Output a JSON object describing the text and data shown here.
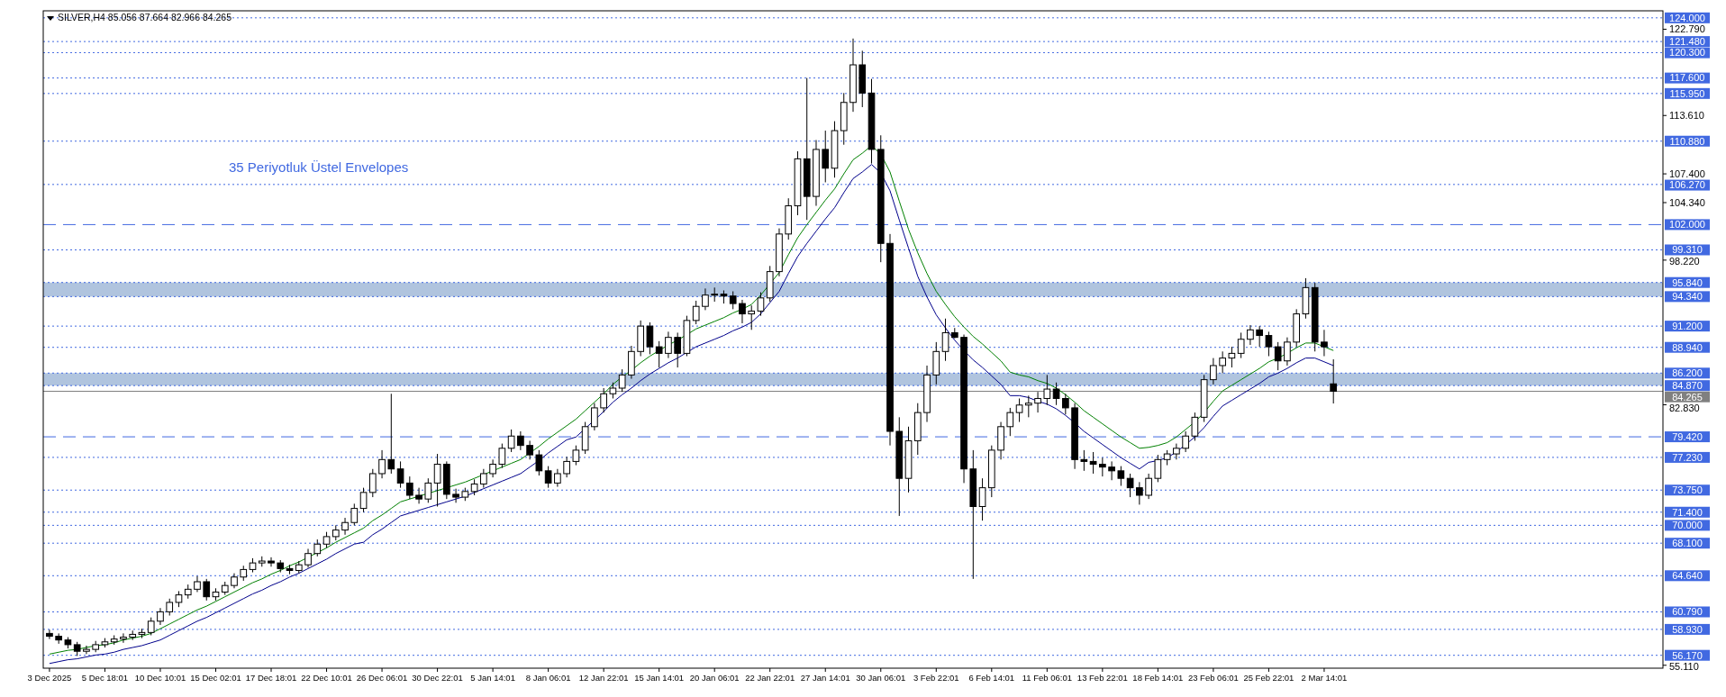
{
  "chart_data": {
    "type": "candlestick",
    "title": "SILVER,H4 85.056 87.664 82.966 84.265",
    "annotations": [
      "35 Periyotluk Üstel Envelopes"
    ],
    "categories": [
      "3 Dec 2025",
      null,
      null,
      null,
      null,
      null,
      "5 Dec 18:01",
      null,
      null,
      null,
      null,
      null,
      "10 Dec 10:01",
      null,
      null,
      null,
      null,
      null,
      "15 Dec 02:01",
      null,
      null,
      null,
      null,
      null,
      "17 Dec 18:01",
      null,
      null,
      null,
      null,
      null,
      "22 Dec 10:01",
      null,
      null,
      null,
      null,
      null,
      "26 Dec 06:01",
      null,
      null,
      null,
      null,
      null,
      "30 Dec 22:01",
      null,
      null,
      null,
      null,
      null,
      "5 Jan 14:01",
      null,
      null,
      null,
      null,
      null,
      "8 Jan 06:01",
      null,
      null,
      null,
      null,
      null,
      "12 Jan 22:01",
      null,
      null,
      null,
      null,
      null,
      "15 Jan 14:01",
      null,
      null,
      null,
      null,
      null,
      "20 Jan 06:01",
      null,
      null,
      null,
      null,
      null,
      "22 Jan 22:01",
      null,
      null,
      null,
      null,
      null,
      "27 Jan 14:01",
      null,
      null,
      null,
      null,
      null,
      "30 Jan 06:01",
      null,
      null,
      null,
      null,
      null,
      "3 Feb 22:01",
      null,
      null,
      null,
      null,
      null,
      "6 Feb 14:01",
      null,
      null,
      null,
      null,
      null,
      "11 Feb 06:01",
      null,
      null,
      null,
      null,
      null,
      "13 Feb 22:01",
      null,
      null,
      null,
      null,
      null,
      "18 Feb 14:01",
      null,
      null,
      null,
      null,
      null,
      "23 Feb 06:01",
      null,
      null,
      null,
      null,
      null,
      "25 Feb 22:01",
      null,
      null,
      null,
      null,
      null,
      "2 Mar 14:01",
      null,
      null,
      null,
      null,
      null,
      null,
      null,
      null,
      null,
      null,
      null,
      null,
      null,
      null,
      null,
      null,
      null,
      null,
      null,
      null,
      null,
      null,
      null,
      null,
      null,
      null,
      null,
      null,
      null,
      null,
      null,
      null,
      null,
      null,
      null,
      null
    ],
    "ohlc": [
      [
        58.5,
        58.9,
        57.9,
        58.2
      ],
      [
        58.2,
        58.5,
        57.4,
        57.8
      ],
      [
        57.8,
        58.1,
        56.9,
        57.3
      ],
      [
        57.3,
        57.6,
        56.1,
        56.6
      ],
      [
        56.6,
        57.2,
        56.3,
        56.8
      ],
      [
        56.8,
        57.7,
        56.5,
        57.3
      ],
      [
        57.3,
        58.0,
        57.0,
        57.6
      ],
      [
        57.6,
        58.3,
        57.3,
        57.9
      ],
      [
        57.9,
        58.5,
        57.5,
        58.1
      ],
      [
        58.1,
        58.8,
        57.8,
        58.4
      ],
      [
        58.4,
        59.0,
        58.0,
        58.6
      ],
      [
        58.6,
        60.2,
        58.3,
        59.8
      ],
      [
        59.8,
        61.2,
        59.4,
        60.8
      ],
      [
        60.8,
        62.2,
        60.4,
        61.8
      ],
      [
        61.8,
        63.0,
        61.3,
        62.6
      ],
      [
        62.6,
        63.7,
        62.2,
        63.2
      ],
      [
        63.2,
        64.6,
        62.9,
        64.0
      ],
      [
        64.0,
        64.3,
        62.0,
        62.4
      ],
      [
        62.4,
        63.3,
        62.0,
        62.9
      ],
      [
        62.9,
        64.0,
        62.6,
        63.6
      ],
      [
        63.6,
        64.9,
        63.3,
        64.5
      ],
      [
        64.5,
        65.7,
        64.1,
        65.3
      ],
      [
        65.3,
        66.5,
        65.0,
        66.0
      ],
      [
        66.0,
        66.7,
        65.6,
        66.2
      ],
      [
        66.2,
        66.6,
        65.6,
        66.0
      ],
      [
        66.0,
        66.3,
        65.0,
        65.4
      ],
      [
        65.4,
        65.8,
        64.8,
        65.2
      ],
      [
        65.2,
        66.2,
        64.9,
        65.8
      ],
      [
        65.8,
        67.5,
        65.5,
        67.0
      ],
      [
        67.0,
        68.5,
        66.7,
        68.0
      ],
      [
        68.0,
        69.3,
        67.6,
        68.8
      ],
      [
        68.8,
        70.0,
        68.4,
        69.5
      ],
      [
        69.5,
        70.8,
        69.0,
        70.3
      ],
      [
        70.3,
        72.3,
        70.0,
        71.8
      ],
      [
        71.8,
        74.0,
        71.4,
        73.5
      ],
      [
        73.5,
        76.0,
        73.0,
        75.5
      ],
      [
        75.5,
        78.0,
        75.0,
        77.0
      ],
      [
        77.0,
        84.0,
        75.5,
        76.0
      ],
      [
        76.0,
        76.8,
        74.0,
        74.5
      ],
      [
        74.5,
        75.2,
        72.8,
        73.2
      ],
      [
        73.2,
        74.0,
        72.3,
        72.8
      ],
      [
        72.8,
        75.0,
        72.4,
        74.5
      ],
      [
        74.5,
        77.6,
        72.0,
        76.5
      ],
      [
        76.5,
        76.8,
        72.8,
        73.3
      ],
      [
        73.3,
        73.9,
        72.4,
        73.0
      ],
      [
        73.0,
        74.0,
        72.6,
        73.6
      ],
      [
        73.6,
        74.9,
        73.2,
        74.4
      ],
      [
        74.4,
        76.0,
        74.0,
        75.5
      ],
      [
        75.5,
        77.0,
        75.1,
        76.5
      ],
      [
        76.5,
        78.7,
        76.1,
        78.2
      ],
      [
        78.2,
        80.2,
        77.8,
        79.5
      ],
      [
        79.5,
        80.0,
        78.0,
        78.5
      ],
      [
        78.5,
        79.0,
        77.0,
        77.5
      ],
      [
        77.5,
        78.0,
        75.3,
        75.8
      ],
      [
        75.8,
        76.3,
        74.0,
        74.5
      ],
      [
        74.5,
        76.0,
        74.1,
        75.5
      ],
      [
        75.5,
        77.3,
        75.1,
        76.8
      ],
      [
        76.8,
        78.5,
        76.4,
        78.0
      ],
      [
        78.0,
        81.0,
        77.6,
        80.5
      ],
      [
        80.5,
        83.0,
        80.1,
        82.5
      ],
      [
        82.5,
        84.6,
        82.0,
        84.0
      ],
      [
        84.0,
        85.2,
        83.5,
        84.6
      ],
      [
        84.6,
        86.6,
        84.2,
        86.0
      ],
      [
        86.0,
        89.1,
        85.6,
        88.5
      ],
      [
        88.5,
        91.8,
        88.0,
        91.2
      ],
      [
        91.2,
        91.6,
        88.2,
        89.0
      ],
      [
        89.0,
        89.6,
        86.8,
        88.3
      ],
      [
        88.3,
        90.6,
        87.8,
        90.0
      ],
      [
        90.0,
        90.5,
        86.8,
        88.3
      ],
      [
        88.3,
        92.3,
        88.0,
        91.8
      ],
      [
        91.8,
        93.9,
        91.4,
        93.3
      ],
      [
        93.3,
        95.2,
        92.9,
        94.5
      ],
      [
        94.5,
        95.3,
        93.8,
        94.6
      ],
      [
        94.6,
        95.0,
        93.6,
        94.4
      ],
      [
        94.4,
        94.9,
        93.0,
        93.6
      ],
      [
        93.6,
        94.0,
        91.5,
        92.5
      ],
      [
        92.5,
        93.4,
        90.8,
        92.8
      ],
      [
        92.8,
        94.8,
        92.3,
        94.2
      ],
      [
        94.2,
        97.6,
        93.8,
        97.0
      ],
      [
        97.0,
        101.6,
        96.5,
        101.0
      ],
      [
        101.0,
        104.8,
        100.4,
        104.0
      ],
      [
        104.0,
        109.8,
        103.0,
        109.0
      ],
      [
        109.0,
        117.6,
        102.5,
        105.0
      ],
      [
        105.0,
        111.0,
        104.0,
        110.0
      ],
      [
        110.0,
        112.0,
        106.5,
        108.0
      ],
      [
        108.0,
        113.0,
        107.0,
        112.0
      ],
      [
        112.0,
        116.0,
        110.5,
        115.0
      ],
      [
        115.0,
        121.8,
        114.0,
        119.0
      ],
      [
        119.0,
        120.5,
        114.5,
        116.0
      ],
      [
        116.0,
        117.5,
        108.5,
        110.0
      ],
      [
        110.0,
        111.5,
        98.0,
        100.0
      ],
      [
        100.0,
        101.0,
        78.5,
        80.0
      ],
      [
        80.0,
        81.5,
        71.0,
        75.0
      ],
      [
        75.0,
        80.5,
        73.5,
        79.0
      ],
      [
        79.0,
        83.0,
        77.5,
        82.0
      ],
      [
        82.0,
        87.0,
        81.0,
        86.0
      ],
      [
        86.0,
        89.5,
        85.0,
        88.5
      ],
      [
        88.5,
        92.0,
        87.5,
        90.5
      ],
      [
        90.5,
        91.0,
        89.9,
        90.0
      ],
      [
        90.0,
        90.3,
        74.5,
        76.0
      ],
      [
        76.0,
        78.0,
        64.3,
        72.0
      ],
      [
        72.0,
        75.0,
        70.5,
        74.0
      ],
      [
        74.0,
        78.5,
        73.0,
        78.0
      ],
      [
        78.0,
        81.0,
        77.0,
        80.5
      ],
      [
        80.5,
        82.5,
        79.5,
        82.0
      ],
      [
        82.0,
        83.5,
        81.0,
        82.8
      ],
      [
        82.8,
        83.8,
        81.5,
        83.0
      ],
      [
        83.0,
        84.2,
        82.0,
        83.5
      ],
      [
        83.5,
        86.0,
        82.8,
        84.5
      ],
      [
        84.5,
        85.2,
        82.8,
        83.5
      ],
      [
        83.5,
        84.0,
        81.8,
        82.5
      ],
      [
        82.5,
        83.0,
        76.0,
        77.0
      ],
      [
        77.0,
        78.0,
        75.8,
        76.8
      ],
      [
        76.8,
        77.8,
        75.5,
        76.5
      ],
      [
        76.5,
        77.2,
        75.2,
        76.2
      ],
      [
        76.2,
        76.8,
        74.8,
        75.8
      ],
      [
        75.8,
        76.3,
        74.2,
        75.0
      ],
      [
        75.0,
        75.5,
        73.0,
        74.0
      ],
      [
        74.0,
        74.6,
        72.2,
        73.2
      ],
      [
        73.2,
        75.5,
        72.8,
        75.0
      ],
      [
        75.0,
        77.5,
        74.6,
        77.0
      ],
      [
        77.0,
        78.0,
        76.4,
        77.6
      ],
      [
        77.6,
        78.7,
        77.0,
        78.2
      ],
      [
        78.2,
        80.0,
        77.8,
        79.5
      ],
      [
        79.5,
        82.0,
        79.0,
        81.5
      ],
      [
        81.5,
        86.0,
        81.0,
        85.5
      ],
      [
        85.5,
        87.8,
        85.0,
        87.0
      ],
      [
        87.0,
        88.5,
        86.2,
        87.8
      ],
      [
        87.8,
        89.0,
        86.8,
        88.3
      ],
      [
        88.3,
        90.5,
        87.8,
        89.8
      ],
      [
        89.8,
        91.3,
        89.2,
        90.8
      ],
      [
        90.8,
        91.2,
        89.0,
        90.2
      ],
      [
        90.2,
        90.6,
        88.0,
        89.0
      ],
      [
        89.0,
        89.5,
        86.5,
        87.5
      ],
      [
        87.5,
        90.0,
        87.0,
        89.5
      ],
      [
        89.5,
        93.0,
        89.0,
        92.5
      ],
      [
        92.5,
        96.3,
        92.0,
        95.3
      ],
      [
        95.3,
        95.8,
        88.5,
        89.5
      ],
      [
        89.5,
        90.8,
        88.0,
        89.0
      ],
      [
        85.056,
        87.664,
        82.966,
        84.265
      ],
      null,
      null,
      null,
      null,
      null,
      null,
      null,
      null,
      null,
      null,
      null,
      null,
      null,
      null,
      null,
      null,
      null,
      null,
      null,
      null,
      null,
      null,
      null,
      null,
      null,
      null,
      null,
      null,
      null,
      null,
      null,
      null,
      null,
      null,
      null
    ],
    "series": [
      {
        "type": "line",
        "color": "#008000",
        "values": [
          56.3,
          56.5,
          56.7,
          56.8,
          57.0,
          57.2,
          57.3,
          57.5,
          57.8,
          58.0,
          58.2,
          58.5,
          59.0,
          59.5,
          60.0,
          60.5,
          61.0,
          61.4,
          61.9,
          62.4,
          62.9,
          63.4,
          63.9,
          64.3,
          64.8,
          65.2,
          65.7,
          66.1,
          66.6,
          67.1,
          67.6,
          68.2,
          68.7,
          69.2,
          69.7,
          70.5,
          71.1,
          71.8,
          72.5,
          72.8,
          73.1,
          73.4,
          73.7,
          74.0,
          74.3,
          74.6,
          75.0,
          75.4,
          75.8,
          76.2,
          76.6,
          77.0,
          77.7,
          78.4,
          79.2,
          79.9,
          80.6,
          81.3,
          82.2,
          83.1,
          84.0,
          85.0,
          85.8,
          86.5,
          87.3,
          88.0,
          88.6,
          89.2,
          89.7,
          90.3,
          90.9,
          91.3,
          91.7,
          92.1,
          92.6,
          93.0,
          93.5,
          94.5,
          95.7,
          96.9,
          98.8,
          100.6,
          102.0,
          103.3,
          104.6,
          105.8,
          107.4,
          108.9,
          109.6,
          110.4,
          109.5,
          107.6,
          104.5,
          101.5,
          99.0,
          96.8,
          94.9,
          93.5,
          92.2,
          91.1,
          90.1,
          89.3,
          88.4,
          87.5,
          86.3,
          86.0,
          85.8,
          85.4,
          85.1,
          84.6,
          83.9,
          83.1,
          82.2,
          81.5,
          80.8,
          80.1,
          79.4,
          78.8,
          78.2,
          78.3,
          78.5,
          78.8,
          79.4,
          80.2,
          81.0,
          82.0,
          83.2,
          84.3,
          84.9,
          85.5,
          86.1,
          86.7,
          87.4,
          87.8,
          88.3,
          88.9,
          89.4,
          89.4,
          89.0,
          88.6,
          null,
          null,
          null,
          null,
          null,
          null,
          null,
          null,
          null,
          null,
          null,
          null,
          null,
          null,
          null,
          null,
          null,
          null,
          null,
          null,
          null,
          null,
          null,
          null,
          null,
          null,
          null,
          null,
          null,
          null,
          null,
          null,
          null,
          null,
          null
        ]
      },
      {
        "type": "line",
        "color": "#00008b",
        "values": [
          55.3,
          55.5,
          55.7,
          55.8,
          56.0,
          56.2,
          56.3,
          56.5,
          56.8,
          57.0,
          57.2,
          57.5,
          57.8,
          58.3,
          58.8,
          59.3,
          59.8,
          60.2,
          60.7,
          61.2,
          61.7,
          62.2,
          62.7,
          63.1,
          63.6,
          64.0,
          64.5,
          64.9,
          65.4,
          65.9,
          66.4,
          67.0,
          67.5,
          68.0,
          68.2,
          69.0,
          69.6,
          70.3,
          71.0,
          71.3,
          71.6,
          71.9,
          72.2,
          72.5,
          72.8,
          73.1,
          73.5,
          73.9,
          74.3,
          74.7,
          75.1,
          75.5,
          76.2,
          76.9,
          77.7,
          78.4,
          79.1,
          79.4,
          80.3,
          81.2,
          82.1,
          83.1,
          83.9,
          84.6,
          85.4,
          86.1,
          86.7,
          87.3,
          87.8,
          88.4,
          89.0,
          89.4,
          89.8,
          90.2,
          90.7,
          91.1,
          91.6,
          92.5,
          93.7,
          94.9,
          96.8,
          98.6,
          100.0,
          101.3,
          102.6,
          103.8,
          105.4,
          106.9,
          107.6,
          108.4,
          107.5,
          105.6,
          102.5,
          99.5,
          96.5,
          94.3,
          92.4,
          91.0,
          89.7,
          88.6,
          87.6,
          86.8,
          85.9,
          85.0,
          83.8,
          83.8,
          83.6,
          83.2,
          82.9,
          82.4,
          81.7,
          80.9,
          80.0,
          79.3,
          78.6,
          77.9,
          77.2,
          76.6,
          76.0,
          76.7,
          76.9,
          77.2,
          77.8,
          78.6,
          79.4,
          80.4,
          81.6,
          82.7,
          83.3,
          83.9,
          84.5,
          85.1,
          85.8,
          86.2,
          86.7,
          87.3,
          87.8,
          87.8,
          87.4,
          87.0,
          null,
          null,
          null,
          null,
          null,
          null,
          null,
          null,
          null,
          null,
          null,
          null,
          null,
          null,
          null,
          null,
          null,
          null,
          null,
          null,
          null,
          null,
          null,
          null,
          null,
          null,
          null,
          null,
          null,
          null,
          null,
          null,
          null,
          null,
          null
        ]
      }
    ],
    "ylim": [
      54.8,
      124.75
    ],
    "yticks": [
      {
        "value": 122.79,
        "label": "122.790"
      },
      {
        "value": 113.61,
        "label": "113.610"
      },
      {
        "value": 107.4,
        "label": "107.400"
      },
      {
        "value": 104.34,
        "label": "104.340"
      },
      {
        "value": 98.22,
        "label": "98.220"
      },
      {
        "value": 82.83,
        "label": "82.830"
      },
      {
        "value": 55.11,
        "label": "55.110"
      }
    ],
    "ref_lines": [
      {
        "axis": "y",
        "value": 124,
        "label": "124.000",
        "color": "#4169e1",
        "line_style": "dotted"
      },
      {
        "axis": "y",
        "value": 121.48,
        "label": "121.480",
        "color": "#4169e1",
        "line_style": "dotted"
      },
      {
        "axis": "y",
        "value": 120.3,
        "label": "120.300",
        "color": "#4169e1",
        "line_style": "dotted"
      },
      {
        "axis": "y",
        "value": 117.6,
        "label": "117.600",
        "color": "#4169e1",
        "line_style": "dotted"
      },
      {
        "axis": "y",
        "value": 115.95,
        "label": "115.950",
        "color": "#4169e1",
        "line_style": "dotted"
      },
      {
        "axis": "y",
        "value": 110.88,
        "label": "110.880",
        "color": "#4169e1",
        "line_style": "dotted"
      },
      {
        "axis": "y",
        "value": 106.27,
        "label": "106.270",
        "color": "#4169e1",
        "line_style": "dotted"
      },
      {
        "axis": "y",
        "value": 102,
        "label": "102.000",
        "color": "#4169e1",
        "line_style": "dashed"
      },
      {
        "axis": "y",
        "value": 99.31,
        "label": "99.310",
        "color": "#4169e1",
        "line_style": "dotted"
      },
      {
        "axis": "y",
        "value": 95.84,
        "label": "95.840",
        "color": "#4169e1",
        "line_style": "dotted"
      },
      {
        "axis": "y",
        "value": 94.34,
        "label": "94.340",
        "color": "#4169e1",
        "line_style": "dotted"
      },
      {
        "axis": "y",
        "value": 91.2,
        "label": "91.200",
        "color": "#4169e1",
        "line_style": "dotted"
      },
      {
        "axis": "y",
        "value": 88.94,
        "label": "88.940",
        "color": "#4169e1",
        "line_style": "dotted"
      },
      {
        "axis": "y",
        "value": 86.2,
        "label": "86.200",
        "color": "#4169e1",
        "line_style": "dotted"
      },
      {
        "axis": "y",
        "value": 84.87,
        "label": "84.870",
        "color": "#4169e1",
        "line_style": "dotted"
      },
      {
        "axis": "y",
        "value": 84.265,
        "label": "84.265",
        "color": "#808080",
        "line_style": "solid"
      },
      {
        "axis": "y",
        "value": 79.42,
        "label": "79.420",
        "color": "#4169e1",
        "line_style": "dashed"
      },
      {
        "axis": "y",
        "value": 77.23,
        "label": "77.230",
        "color": "#4169e1",
        "line_style": "dotted"
      },
      {
        "axis": "y",
        "value": 73.75,
        "label": "73.750",
        "color": "#4169e1",
        "line_style": "dotted"
      },
      {
        "axis": "y",
        "value": 71.4,
        "label": "71.400",
        "color": "#4169e1",
        "line_style": "dotted"
      },
      {
        "axis": "y",
        "value": 70,
        "label": "70.000",
        "color": "#4169e1",
        "line_style": "dotted"
      },
      {
        "axis": "y",
        "value": 68.1,
        "label": "68.100",
        "color": "#4169e1",
        "line_style": "dotted"
      },
      {
        "axis": "y",
        "value": 64.64,
        "label": "64.640",
        "color": "#4169e1",
        "line_style": "dotted"
      },
      {
        "axis": "y",
        "value": 60.79,
        "label": "60.790",
        "color": "#4169e1",
        "line_style": "dotted"
      },
      {
        "axis": "y",
        "value": 58.93,
        "label": "58.930",
        "color": "#4169e1",
        "line_style": "dotted"
      },
      {
        "axis": "y",
        "value": 56.17,
        "label": "56.170",
        "color": "#4169e1",
        "line_style": "dotted"
      }
    ],
    "bands": [
      {
        "axis": "y",
        "from": 94.34,
        "to": 95.84,
        "color": "#b0c4de"
      },
      {
        "axis": "y",
        "from": 84.87,
        "to": 86.2,
        "color": "#b0c4de"
      }
    ]
  }
}
